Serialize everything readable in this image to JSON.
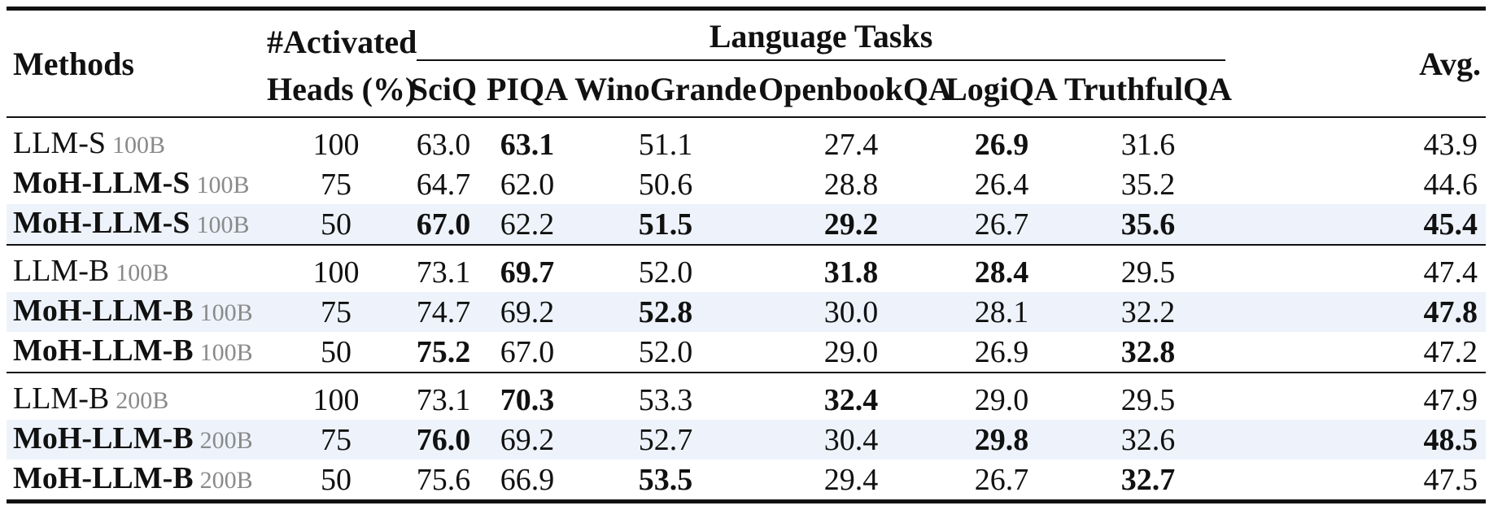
{
  "header": {
    "methods": "Methods",
    "activated_line1": "#Activated",
    "activated_line2": "Heads (%)",
    "language_tasks": "Language Tasks",
    "avg": "Avg.",
    "tasks": [
      "SciQ",
      "PIQA",
      "WinoGrande",
      "OpenbookQA",
      "LogiQA",
      "TruthfulQA"
    ]
  },
  "groups": [
    {
      "rows": [
        {
          "method": "LLM-S",
          "tokens": "100B",
          "method_bold": false,
          "shaded": false,
          "heads": "100",
          "values": [
            "63.0",
            "63.1",
            "51.1",
            "27.4",
            "26.9",
            "31.6"
          ],
          "bold": [
            false,
            true,
            false,
            false,
            true,
            false
          ],
          "avg": "43.9",
          "avg_bold": false
        },
        {
          "method": "MoH-LLM-S",
          "tokens": "100B",
          "method_bold": true,
          "shaded": false,
          "heads": "75",
          "values": [
            "64.7",
            "62.0",
            "50.6",
            "28.8",
            "26.4",
            "35.2"
          ],
          "bold": [
            false,
            false,
            false,
            false,
            false,
            false
          ],
          "avg": "44.6",
          "avg_bold": false
        },
        {
          "method": "MoH-LLM-S",
          "tokens": "100B",
          "method_bold": true,
          "shaded": true,
          "heads": "50",
          "values": [
            "67.0",
            "62.2",
            "51.5",
            "29.2",
            "26.7",
            "35.6"
          ],
          "bold": [
            true,
            false,
            true,
            true,
            false,
            true
          ],
          "avg": "45.4",
          "avg_bold": true
        }
      ]
    },
    {
      "rows": [
        {
          "method": "LLM-B",
          "tokens": "100B",
          "method_bold": false,
          "shaded": false,
          "heads": "100",
          "values": [
            "73.1",
            "69.7",
            "52.0",
            "31.8",
            "28.4",
            "29.5"
          ],
          "bold": [
            false,
            true,
            false,
            true,
            true,
            false
          ],
          "avg": "47.4",
          "avg_bold": false
        },
        {
          "method": "MoH-LLM-B",
          "tokens": "100B",
          "method_bold": true,
          "shaded": true,
          "heads": "75",
          "values": [
            "74.7",
            "69.2",
            "52.8",
            "30.0",
            "28.1",
            "32.2"
          ],
          "bold": [
            false,
            false,
            true,
            false,
            false,
            false
          ],
          "avg": "47.8",
          "avg_bold": true
        },
        {
          "method": "MoH-LLM-B",
          "tokens": "100B",
          "method_bold": true,
          "shaded": false,
          "heads": "50",
          "values": [
            "75.2",
            "67.0",
            "52.0",
            "29.0",
            "26.9",
            "32.8"
          ],
          "bold": [
            true,
            false,
            false,
            false,
            false,
            true
          ],
          "avg": "47.2",
          "avg_bold": false
        }
      ]
    },
    {
      "rows": [
        {
          "method": "LLM-B",
          "tokens": "200B",
          "method_bold": false,
          "shaded": false,
          "heads": "100",
          "values": [
            "73.1",
            "70.3",
            "53.3",
            "32.4",
            "29.0",
            "29.5"
          ],
          "bold": [
            false,
            true,
            false,
            true,
            false,
            false
          ],
          "avg": "47.9",
          "avg_bold": false
        },
        {
          "method": "MoH-LLM-B",
          "tokens": "200B",
          "method_bold": true,
          "shaded": true,
          "heads": "75",
          "values": [
            "76.0",
            "69.2",
            "52.7",
            "30.4",
            "29.8",
            "32.6"
          ],
          "bold": [
            true,
            false,
            false,
            false,
            true,
            false
          ],
          "avg": "48.5",
          "avg_bold": true
        },
        {
          "method": "MoH-LLM-B",
          "tokens": "200B",
          "method_bold": true,
          "shaded": false,
          "heads": "50",
          "values": [
            "75.6",
            "66.9",
            "53.5",
            "29.4",
            "26.7",
            "32.7"
          ],
          "bold": [
            false,
            false,
            true,
            false,
            false,
            true
          ],
          "avg": "47.5",
          "avg_bold": false
        }
      ]
    }
  ]
}
